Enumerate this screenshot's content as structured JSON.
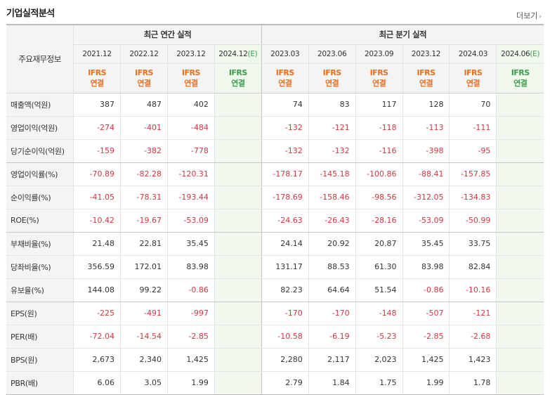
{
  "title": "기업실적분석",
  "more_label": "더보기",
  "header": {
    "row_label": "주요재무정보",
    "annual_group": "최근 연간 실적",
    "quarter_group": "최근 분기 실적",
    "annual_periods": [
      "2021.12",
      "2022.12",
      "2023.12",
      "2024.12"
    ],
    "annual_estimate_mark": "(E)",
    "quarter_periods": [
      "2023.03",
      "2023.06",
      "2023.09",
      "2023.12",
      "2024.03",
      "2024.06"
    ],
    "quarter_estimate_mark": "(E)",
    "basis_top": "IFRS",
    "basis_bottom": "연결"
  },
  "rows": [
    {
      "label": "매출액(억원)",
      "annual": [
        "387",
        "487",
        "402",
        ""
      ],
      "quarter": [
        "74",
        "83",
        "117",
        "128",
        "70",
        ""
      ]
    },
    {
      "label": "영업이익(억원)",
      "annual": [
        "-274",
        "-401",
        "-484",
        ""
      ],
      "quarter": [
        "-132",
        "-121",
        "-118",
        "-113",
        "-111",
        ""
      ]
    },
    {
      "label": "당기순이익(억원)",
      "annual": [
        "-159",
        "-382",
        "-778",
        ""
      ],
      "quarter": [
        "-132",
        "-132",
        "-116",
        "-398",
        "-95",
        ""
      ]
    },
    {
      "label": "영업이익률(%)",
      "annual": [
        "-70.89",
        "-82.28",
        "-120.31",
        ""
      ],
      "quarter": [
        "-178.17",
        "-145.18",
        "-100.86",
        "-88.41",
        "-157.85",
        ""
      ]
    },
    {
      "label": "순이익률(%)",
      "annual": [
        "-41.05",
        "-78.31",
        "-193.44",
        ""
      ],
      "quarter": [
        "-178.69",
        "-158.46",
        "-98.56",
        "-312.05",
        "-134.83",
        ""
      ]
    },
    {
      "label": "ROE(%)",
      "annual": [
        "-10.42",
        "-19.67",
        "-53.09",
        ""
      ],
      "quarter": [
        "-24.63",
        "-26.43",
        "-28.16",
        "-53.09",
        "-50.99",
        ""
      ]
    },
    {
      "label": "부채비율(%)",
      "annual": [
        "21.48",
        "22.81",
        "35.45",
        ""
      ],
      "quarter": [
        "24.14",
        "20.92",
        "20.87",
        "35.45",
        "33.75",
        ""
      ]
    },
    {
      "label": "당좌비율(%)",
      "annual": [
        "356.59",
        "172.01",
        "83.98",
        ""
      ],
      "quarter": [
        "131.17",
        "88.53",
        "61.30",
        "83.98",
        "82.84",
        ""
      ]
    },
    {
      "label": "유보율(%)",
      "annual": [
        "144.08",
        "99.22",
        "-0.86",
        ""
      ],
      "quarter": [
        "82.23",
        "64.64",
        "51.54",
        "-0.86",
        "-10.16",
        ""
      ]
    },
    {
      "label": "EPS(원)",
      "annual": [
        "-225",
        "-491",
        "-997",
        ""
      ],
      "quarter": [
        "-170",
        "-170",
        "-148",
        "-507",
        "-121",
        ""
      ]
    },
    {
      "label": "PER(배)",
      "annual": [
        "-72.04",
        "-14.54",
        "-2.85",
        ""
      ],
      "quarter": [
        "-10.58",
        "-6.19",
        "-5.23",
        "-2.85",
        "-2.68",
        ""
      ]
    },
    {
      "label": "BPS(원)",
      "annual": [
        "2,673",
        "2,340",
        "1,425",
        ""
      ],
      "quarter": [
        "2,280",
        "2,117",
        "2,023",
        "1,425",
        "1,423",
        ""
      ]
    },
    {
      "label": "PBR(배)",
      "annual": [
        "6.06",
        "3.05",
        "1.99",
        ""
      ],
      "quarter": [
        "2.79",
        "1.84",
        "1.75",
        "1.99",
        "1.78",
        ""
      ]
    }
  ],
  "colors": {
    "negative": "#d4373f",
    "basis": "#ec6f1f",
    "estimate": "#3ba04d",
    "estimate_bg": "#f2f8ee",
    "header_bg": "#f4f4f4"
  }
}
